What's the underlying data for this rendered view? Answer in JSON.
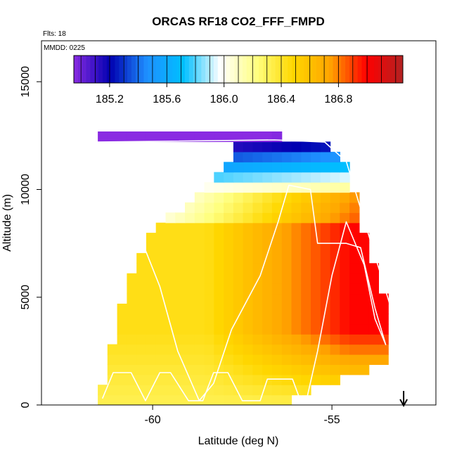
{
  "chart_data": {
    "type": "heatmap",
    "title": "ORCAS RF18 CO2_FFF_FMPD",
    "annotations": {
      "flights": "Flts: 18",
      "date": "MMDD: 0225"
    },
    "xlabel": "Latitude (deg N)",
    "ylabel": "Altitude (m)",
    "xlim": [
      -63.1,
      -52.1
    ],
    "ylim": [
      0,
      16900
    ],
    "x_ticks": [
      -60,
      -55
    ],
    "x_tick_labels": [
      "-60",
      "-55"
    ],
    "y_ticks": [
      0,
      5000,
      10000,
      15000
    ],
    "y_tick_labels": [
      "0",
      "5000",
      "10000",
      "15000"
    ],
    "colorbar": {
      "min": 184.95,
      "max": 187.25,
      "ticks": [
        185.2,
        185.6,
        186.0,
        186.4,
        186.8
      ],
      "tick_labels": [
        "185.2",
        "185.6",
        "186.0",
        "186.4",
        "186.8"
      ],
      "colors": [
        "#8a2be2",
        "#0000b0",
        "#1e90ff",
        "#00bfff",
        "#ffffff",
        "#ffff80",
        "#ffd700",
        "#ffa500",
        "#ff0000",
        "#b22222"
      ]
    },
    "domain": {
      "left_edge": [
        [
          -61.6,
          0
        ],
        [
          -61.1,
          2800
        ],
        [
          -60.7,
          5700
        ],
        [
          -60.0,
          8000
        ],
        [
          -58.3,
          10500
        ],
        [
          -57.6,
          12200
        ]
      ],
      "right_edge": [
        [
          -56.6,
          12300
        ],
        [
          -55.2,
          12200
        ],
        [
          -54.6,
          11300
        ],
        [
          -54.1,
          8000
        ],
        [
          -53.3,
          4000
        ],
        [
          -53.5,
          1900
        ],
        [
          -54.4,
          1300
        ],
        [
          -55.1,
          1000
        ],
        [
          -56.0,
          500
        ],
        [
          -56.4,
          0
        ]
      ]
    },
    "flight_track": [
      [
        -61.4,
        300
      ],
      [
        -61.1,
        1500
      ],
      [
        -60.6,
        1500
      ],
      [
        -60.2,
        200
      ],
      [
        -59.8,
        1500
      ],
      [
        -59.5,
        1500
      ],
      [
        -59.0,
        200
      ],
      [
        -58.6,
        200
      ],
      [
        -58.3,
        1500
      ],
      [
        -57.9,
        1500
      ],
      [
        -57.5,
        200
      ],
      [
        -57.0,
        200
      ],
      [
        -56.8,
        1200
      ],
      [
        -56.1,
        1200
      ],
      [
        -55.9,
        300
      ],
      [
        -55.7,
        300
      ],
      [
        -55.4,
        2500
      ],
      [
        -55.0,
        6000
      ],
      [
        -54.6,
        8500
      ],
      [
        -54.1,
        6500
      ],
      [
        -53.8,
        4000
      ],
      [
        -53.5,
        2800
      ],
      [
        -53.8,
        4500
      ],
      [
        -54.2,
        7300
      ],
      [
        -54.6,
        7500
      ],
      [
        -55.4,
        7500
      ],
      [
        -55.6,
        10000
      ],
      [
        -56.2,
        10200
      ],
      [
        -56.5,
        8500
      ],
      [
        -57.0,
        6000
      ],
      [
        -57.8,
        3500
      ],
      [
        -58.3,
        1000
      ],
      [
        -58.7,
        200
      ],
      [
        -59.3,
        2500
      ],
      [
        -59.8,
        5500
      ],
      [
        -60.3,
        7600
      ],
      [
        -60.7,
        7700
      ],
      [
        -61.2,
        6000
      ],
      [
        -61.5,
        3000
      ],
      [
        -61.7,
        300
      ],
      [
        -61.6,
        12200
      ],
      [
        -56.6,
        12300
      ],
      [
        -55.2,
        12200
      ],
      [
        -54.6,
        11300
      ],
      [
        -53.3,
        4200
      ]
    ],
    "marker": {
      "symbol": "arrow-down",
      "latitude": -53.0
    }
  }
}
